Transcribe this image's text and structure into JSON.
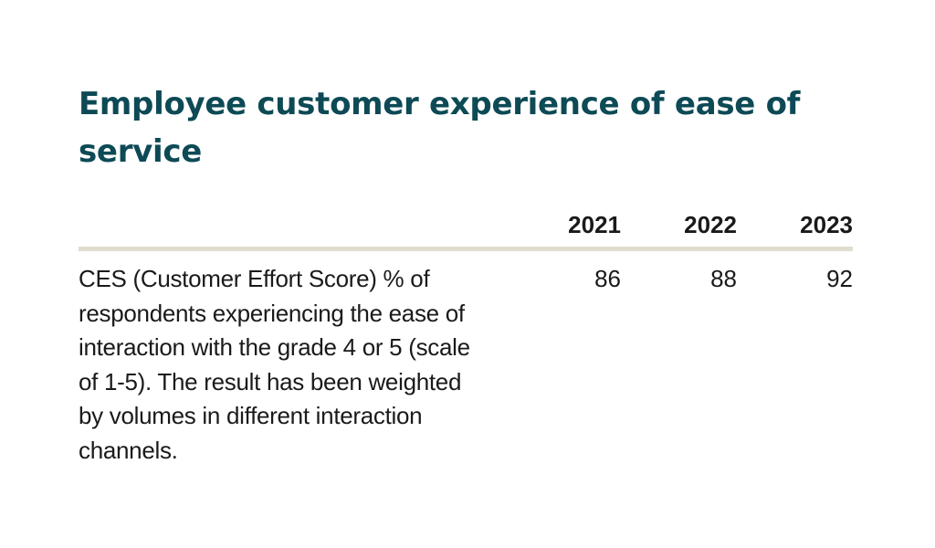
{
  "title": "Employee customer experience of ease of service",
  "table": {
    "headers": [
      "",
      "2021",
      "2022",
      "2023"
    ],
    "rows": [
      {
        "label": "CES (Customer Effort Score) % of respondents experiencing the ease of interaction with the grade 4 or 5 (scale of 1-5). The result has been weighted by volumes in different interaction channels.",
        "values": [
          "86",
          "88",
          "92"
        ]
      }
    ]
  },
  "colors": {
    "title": "#0d4a55",
    "text": "#1a1a1a",
    "rule": "#e0ddd0"
  }
}
